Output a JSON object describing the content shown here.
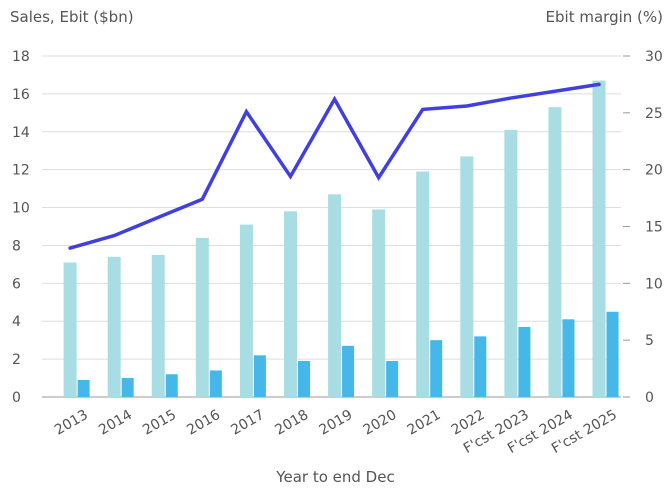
{
  "chart_data": {
    "type": "bar",
    "xlabel": "Year to end Dec",
    "ylabel": "Sales, Ebit ($bn)",
    "ylabel_right": "Ebit margin (%)",
    "ylim": [
      0,
      18
    ],
    "ylim_right": [
      0,
      30
    ],
    "yticks": [
      0,
      2,
      4,
      6,
      8,
      10,
      12,
      14,
      16,
      18
    ],
    "yticks_right": [
      0,
      5,
      10,
      15,
      20,
      25,
      30
    ],
    "grid": true,
    "legend": "none",
    "categories": [
      "2013",
      "2014",
      "2015",
      "2016",
      "2017",
      "2018",
      "2019",
      "2020",
      "2021",
      "2022",
      "F'cst 2023",
      "F'cst 2024",
      "F'cst 2025"
    ],
    "series": [
      {
        "type": "bar",
        "axis": "left",
        "color": "#a8dde3",
        "values": [
          7.1,
          7.4,
          7.5,
          8.4,
          9.1,
          9.8,
          10.7,
          9.9,
          11.9,
          12.7,
          14.1,
          15.3,
          16.7
        ]
      },
      {
        "type": "bar",
        "axis": "left",
        "color": "#45b7e8",
        "values": [
          0.9,
          1.0,
          1.2,
          1.4,
          2.2,
          1.9,
          2.7,
          1.9,
          3.0,
          3.2,
          3.7,
          4.1,
          4.5
        ]
      },
      {
        "type": "line",
        "axis": "right",
        "color": "#4040e0",
        "values": [
          13.1,
          14.2,
          15.8,
          17.4,
          25.1,
          19.4,
          26.2,
          19.3,
          25.3,
          25.6,
          26.3,
          26.9,
          27.5
        ]
      }
    ]
  }
}
